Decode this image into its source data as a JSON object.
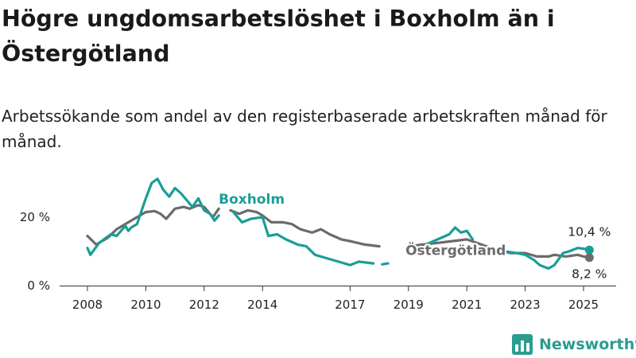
{
  "header": {
    "title": "Högre ungdomsarbetslöshet i Boxholm än i Östergötland",
    "subtitle": "Arbetssökande som andel av den registerbaserade arbetskraften månad för månad."
  },
  "brand": {
    "name": "Newsworthy",
    "logo_icon": "newsworthy-logo-icon",
    "color": "#2a9d8f"
  },
  "chart_data": {
    "type": "line",
    "title": "Högre ungdomsarbetslöshet i Boxholm än i Östergötland",
    "subtitle": "Arbetssökande som andel av den registerbaserade arbetskraften månad för månad.",
    "xlabel": "",
    "ylabel": "",
    "x_range": [
      2008.0,
      2025.3
    ],
    "ylim": [
      0,
      30
    ],
    "x_ticks": [
      {
        "value": 2008,
        "label": "2008"
      },
      {
        "value": 2010,
        "label": "2010"
      },
      {
        "value": 2012,
        "label": "2012"
      },
      {
        "value": 2014,
        "label": "2014"
      },
      {
        "value": 2017,
        "label": "2017"
      },
      {
        "value": 2019,
        "label": "2019"
      },
      {
        "value": 2021,
        "label": "2021"
      },
      {
        "value": 2023,
        "label": "2023"
      },
      {
        "value": 2025,
        "label": "2025"
      }
    ],
    "y_ticks": [
      {
        "value": 0,
        "label": "0 %"
      },
      {
        "value": 20,
        "label": "20 %"
      }
    ],
    "grid": false,
    "legend": "inline labels",
    "series": [
      {
        "name": "Boxholm",
        "color": "#1a9e96",
        "label_point": [
          2012.5,
          23.9
        ],
        "end_label": "10,4 %",
        "x": [
          2008.0,
          2008.1,
          2008.4,
          2008.8,
          2009.0,
          2009.3,
          2009.4,
          2009.5,
          2009.7,
          2009.9,
          2010.0,
          2010.2,
          2010.4,
          2010.6,
          2010.8,
          2011.0,
          2011.2,
          2011.4,
          2011.6,
          2011.8,
          2012.0,
          2012.2,
          2012.35,
          2012.5,
          null,
          2013.0,
          2013.3,
          2013.6,
          2014.0,
          2014.2,
          2014.5,
          2014.8,
          2015.2,
          2015.5,
          2015.8,
          2016.2,
          2016.6,
          2017.0,
          2017.3,
          2017.8,
          null,
          2018.1,
          2018.3,
          null,
          2018.8,
          null,
          2019.6,
          2020.0,
          2020.4,
          2020.6,
          2020.8,
          2021.0,
          2021.2,
          null,
          2021.4,
          2021.7,
          2022.0,
          2022.3,
          2022.7,
          2023.0,
          2023.3,
          2023.5,
          2023.8,
          2024.0,
          2024.3,
          2024.5,
          2024.8,
          2025.0,
          2025.2
        ],
        "values": [
          11.0,
          9.0,
          12.5,
          15.0,
          14.5,
          17.5,
          16.0,
          17.0,
          18.0,
          23.0,
          25.5,
          30.0,
          31.2,
          28.0,
          26.0,
          28.5,
          27.0,
          25.0,
          23.0,
          25.5,
          22.0,
          21.0,
          19.0,
          20.5,
          null,
          21.5,
          18.5,
          19.5,
          20.0,
          14.5,
          15.0,
          13.5,
          12.0,
          11.5,
          9.0,
          8.0,
          7.0,
          6.0,
          7.0,
          6.5,
          null,
          6.2,
          6.5,
          null,
          7.0,
          null,
          12.0,
          13.5,
          15.0,
          17.0,
          15.5,
          16.0,
          13.5,
          null,
          11.0,
          10.8,
          10.2,
          10.0,
          9.5,
          9.0,
          7.5,
          6.0,
          5.0,
          6.0,
          9.5,
          10.0,
          11.0,
          10.8,
          10.4
        ]
      },
      {
        "name": "Östergötland",
        "color": "#6b6b6b",
        "label_point": [
          2018.9,
          8.9
        ],
        "end_label": "8,2 %",
        "x": [
          2008.0,
          2008.3,
          2008.7,
          2009.0,
          2009.3,
          2009.6,
          2010.0,
          2010.3,
          2010.5,
          2010.7,
          2011.0,
          2011.3,
          2011.5,
          2011.8,
          2012.0,
          2012.3,
          2012.5,
          null,
          2012.9,
          2013.2,
          2013.5,
          2013.8,
          2014.0,
          2014.3,
          2014.7,
          2015.0,
          2015.3,
          2015.7,
          2016.0,
          2016.3,
          2016.7,
          2017.0,
          2017.5,
          2018.0,
          null,
          2019.0,
          2019.5,
          2020.0,
          2020.5,
          2021.0,
          2021.5,
          2022.0,
          2022.5,
          2023.0,
          2023.4,
          2023.8,
          2024.0,
          2024.4,
          2024.8,
          2025.0,
          2025.2
        ],
        "values": [
          14.5,
          12.0,
          14.0,
          16.5,
          18.0,
          19.5,
          21.5,
          21.8,
          21.0,
          19.5,
          22.5,
          23.0,
          22.5,
          23.5,
          23.0,
          20.0,
          22.5,
          null,
          22.0,
          21.0,
          22.0,
          21.5,
          20.5,
          18.5,
          18.5,
          18.0,
          16.5,
          15.5,
          16.5,
          15.0,
          13.5,
          13.0,
          12.0,
          11.5,
          null,
          11.5,
          12.0,
          12.5,
          13.0,
          13.5,
          12.0,
          10.5,
          9.5,
          9.5,
          8.5,
          8.5,
          9.0,
          8.5,
          9.0,
          8.5,
          8.2
        ]
      }
    ]
  }
}
